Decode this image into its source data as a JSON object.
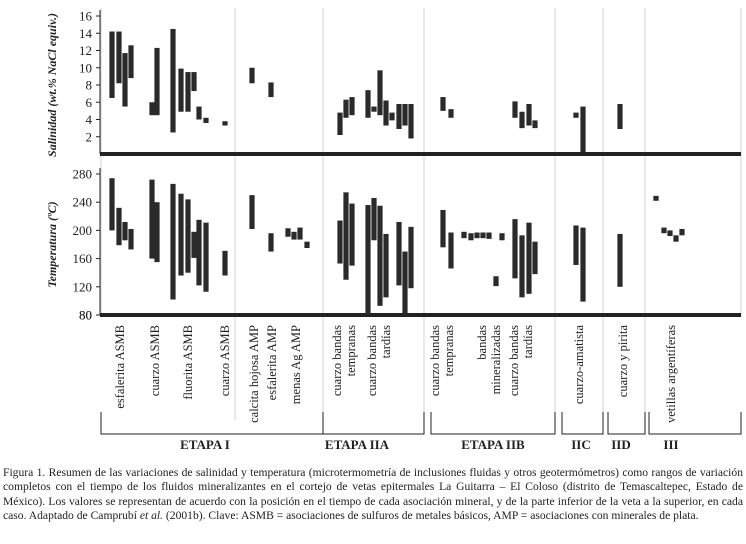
{
  "chart_data": [
    {
      "type": "range-bar",
      "ylabel": "Salinidad (wt.% NaCl equiv.)",
      "ylim": [
        0,
        16
      ],
      "yticks": [
        2,
        4,
        6,
        8,
        10,
        12,
        14,
        16
      ],
      "bars": [
        {
          "group": "esfalerita ASMB",
          "min": 6.5,
          "max": 14.2
        },
        {
          "group": "esfalerita ASMB",
          "min": 8.2,
          "max": 14.2
        },
        {
          "group": "esfalerita ASMB",
          "min": 5.5,
          "max": 11.7
        },
        {
          "group": "esfalerita ASMB",
          "min": 8.8,
          "max": 12.6
        },
        {
          "group": "cuarzo ASMB",
          "min": 4.5,
          "max": 6.0
        },
        {
          "group": "cuarzo ASMB",
          "min": 4.5,
          "max": 12.3
        },
        {
          "group": "fluorita ASMB",
          "min": 2.5,
          "max": 14.5
        },
        {
          "group": "fluorita ASMB",
          "min": 4.9,
          "max": 9.9
        },
        {
          "group": "fluorita ASMB",
          "min": 4.9,
          "max": 9.5
        },
        {
          "group": "fluorita ASMB",
          "min": 7.3,
          "max": 9.5
        },
        {
          "group": "fluorita ASMB",
          "min": 4.0,
          "max": 5.5
        },
        {
          "group": "cuarzo ASMB",
          "min": 3.6,
          "max": 4.2
        },
        {
          "group": "cuarzo ASMB",
          "min": 3.3,
          "max": 3.8
        },
        {
          "group": "calcita hojosa AMP",
          "min": 8.2,
          "max": 10.0
        },
        {
          "group": "esfalerita AMP",
          "min": 6.6,
          "max": 8.3
        },
        {
          "group": "cuarzo bandas tempranas",
          "min": 2.2,
          "max": 4.8
        },
        {
          "group": "cuarzo bandas tempranas",
          "min": 4.2,
          "max": 6.3
        },
        {
          "group": "cuarzo bandas tempranas",
          "min": 4.5,
          "max": 6.6
        },
        {
          "group": "cuarzo bandas tardías",
          "min": 4.2,
          "max": 7.4
        },
        {
          "group": "cuarzo bandas tardías",
          "min": 4.9,
          "max": 5.5
        },
        {
          "group": "cuarzo bandas tardías",
          "min": 4.5,
          "max": 9.7
        },
        {
          "group": "cuarzo bandas tardías",
          "min": 3.3,
          "max": 6.2
        },
        {
          "group": "cuarzo bandas tardías",
          "min": 3.9,
          "max": 4.8
        },
        {
          "group": "cuarzo bandas tardías",
          "min": 2.9,
          "max": 5.8
        },
        {
          "group": "cuarzo bandas tardías",
          "min": 3.3,
          "max": 5.8
        },
        {
          "group": "cuarzo bandas tardías",
          "min": 1.8,
          "max": 5.8
        },
        {
          "group": "cuarzo bandas tempranas",
          "min": 5.0,
          "max": 6.6
        },
        {
          "group": "cuarzo bandas tempranas",
          "min": 4.2,
          "max": 5.2
        },
        {
          "group": "cuarzo bandas tardías",
          "min": 4.2,
          "max": 6.1
        },
        {
          "group": "cuarzo bandas tardías",
          "min": 3.0,
          "max": 4.9
        },
        {
          "group": "cuarzo bandas tardías",
          "min": 3.3,
          "max": 5.8
        },
        {
          "group": "cuarzo bandas tardías",
          "min": 3.0,
          "max": 3.9
        },
        {
          "group": "cuarzo-amatista",
          "min": 4.2,
          "max": 4.8
        },
        {
          "group": "cuarzo-amatista",
          "min": 0.2,
          "max": 5.5
        },
        {
          "group": "cuarzo y pirita",
          "min": 2.9,
          "max": 5.8
        }
      ]
    },
    {
      "type": "range-bar",
      "ylabel": "Temperatura (ºC)",
      "ylim": [
        80,
        280
      ],
      "yticks": [
        80,
        120,
        160,
        200,
        240,
        280
      ],
      "bars": [
        {
          "group": "esfalerita ASMB",
          "min": 200,
          "max": 274
        },
        {
          "group": "esfalerita ASMB",
          "min": 179,
          "max": 232
        },
        {
          "group": "esfalerita ASMB",
          "min": 186,
          "max": 212
        },
        {
          "group": "esfalerita ASMB",
          "min": 173,
          "max": 202
        },
        {
          "group": "cuarzo ASMB",
          "min": 160,
          "max": 272
        },
        {
          "group": "cuarzo ASMB",
          "min": 155,
          "max": 240
        },
        {
          "group": "fluorita ASMB",
          "min": 102,
          "max": 266
        },
        {
          "group": "fluorita ASMB",
          "min": 136,
          "max": 252
        },
        {
          "group": "fluorita ASMB",
          "min": 140,
          "max": 244
        },
        {
          "group": "fluorita ASMB",
          "min": 161,
          "max": 198
        },
        {
          "group": "fluorita ASMB",
          "min": 122,
          "max": 215
        },
        {
          "group": "fluorita ASMB",
          "min": 113,
          "max": 211
        },
        {
          "group": "cuarzo ASMB",
          "min": 136,
          "max": 171
        },
        {
          "group": "calcita hojosa AMP",
          "min": 202,
          "max": 250
        },
        {
          "group": "esfalerita AMP",
          "min": 170,
          "max": 196
        },
        {
          "group": "menas Ag AMP",
          "min": 191,
          "max": 203
        },
        {
          "group": "menas Ag AMP",
          "min": 187,
          "max": 198
        },
        {
          "group": "menas Ag AMP",
          "min": 187,
          "max": 204
        },
        {
          "group": "menas Ag AMP",
          "min": 175,
          "max": 184
        },
        {
          "group": "cuarzo bandas tempranas",
          "min": 153,
          "max": 214
        },
        {
          "group": "cuarzo bandas tempranas",
          "min": 130,
          "max": 254
        },
        {
          "group": "cuarzo bandas tempranas",
          "min": 150,
          "max": 238
        },
        {
          "group": "cuarzo bandas tardías",
          "min": 81,
          "max": 236
        },
        {
          "group": "cuarzo bandas tardías",
          "min": 186,
          "max": 246
        },
        {
          "group": "cuarzo bandas tardías",
          "min": 93,
          "max": 235
        },
        {
          "group": "cuarzo bandas tardías",
          "min": 105,
          "max": 195
        },
        {
          "group": "cuarzo bandas tardías",
          "min": 122,
          "max": 212
        },
        {
          "group": "cuarzo bandas tardías",
          "min": 81,
          "max": 170
        },
        {
          "group": "cuarzo bandas tardías",
          "min": 118,
          "max": 205
        },
        {
          "group": "cuarzo bandas tempranas",
          "min": 176,
          "max": 229
        },
        {
          "group": "cuarzo bandas tempranas",
          "min": 146,
          "max": 197
        },
        {
          "group": "bandas mineralizadas",
          "min": 189,
          "max": 198
        },
        {
          "group": "bandas mineralizadas",
          "min": 186,
          "max": 196
        },
        {
          "group": "bandas mineralizadas",
          "min": 189,
          "max": 197
        },
        {
          "group": "bandas mineralizadas",
          "min": 189,
          "max": 197
        },
        {
          "group": "bandas mineralizadas",
          "min": 188,
          "max": 197
        },
        {
          "group": "bandas mineralizadas",
          "min": 121,
          "max": 135
        },
        {
          "group": "bandas mineralizadas",
          "min": 186,
          "max": 196
        },
        {
          "group": "cuarzo bandas tardías",
          "min": 132,
          "max": 216
        },
        {
          "group": "cuarzo bandas tardías",
          "min": 105,
          "max": 193
        },
        {
          "group": "cuarzo bandas tardías",
          "min": 110,
          "max": 211
        },
        {
          "group": "cuarzo bandas tardías",
          "min": 138,
          "max": 184
        },
        {
          "group": "cuarzo-amatista",
          "min": 151,
          "max": 207
        },
        {
          "group": "cuarzo-amatista",
          "min": 99,
          "max": 204
        },
        {
          "group": "cuarzo y pirita",
          "min": 120,
          "max": 195
        },
        {
          "group": "vetillas argentíferas",
          "min": 242,
          "max": 249
        },
        {
          "group": "vetillas argentíferas",
          "min": 196,
          "max": 204
        },
        {
          "group": "vetillas argentíferas",
          "min": 192,
          "max": 200
        },
        {
          "group": "vetillas argentíferas",
          "min": 184,
          "max": 193
        },
        {
          "group": "vetillas argentíferas",
          "min": 193,
          "max": 202
        }
      ]
    }
  ],
  "categories": [
    "esfalerita ASMB",
    "cuarzo ASMB",
    "fluorita ASMB",
    "cuarzo ASMB",
    "calcita hojosa AMP",
    "esfalerita AMP",
    "menas Ag AMP",
    "cuarzo bandas tempranas",
    "cuarzo bandas tardías",
    "cuarzo bandas tempranas",
    "bandas mineralizadas",
    "cuarzo bandas tardías",
    "cuarzo-amatista",
    "cuarzo y pirita",
    "vetillas argentíferas"
  ],
  "stages": [
    "ETAPA I",
    "ETAPA IIA",
    "ETAPA IIB",
    "IIC",
    "IID",
    "III"
  ],
  "caption": {
    "part1": "Figura 1. Resumen de las variaciones de salinidad y temperatura (microtermometría de inclusiones fluidas y otros geotermómetros) como rangos de variación completos con el tiempo de los fluidos mineralizantes en el cortejo de vetas epitermales La Guitarra – El Coloso (distrito de Temascaltepec, Estado de México). Los valores se representan de acuerdo con la posición en el tiempo de cada asociación mineral, y de la parte inferior de la veta a la superior, en cada caso. Adaptado de Camprubí ",
    "etal": "et al.",
    "part2": " (2001b). Clave: ASMB = asociaciones de sulfuros de metales básicos, AMP = asociaciones con minerales de plata."
  }
}
